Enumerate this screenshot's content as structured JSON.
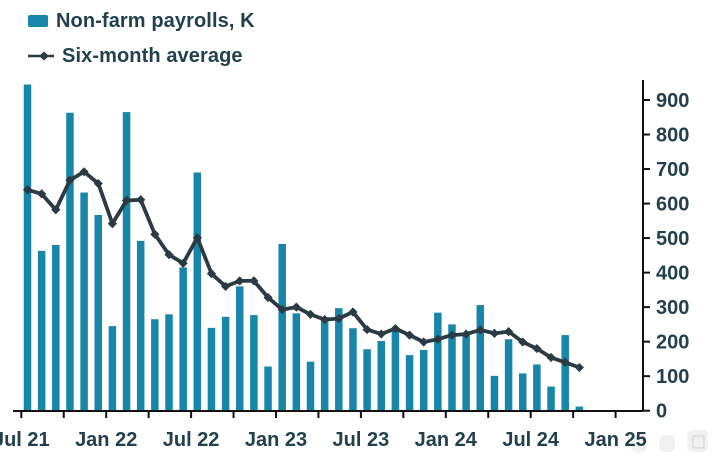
{
  "colors": {
    "bar": "#1886a8",
    "line": "#2b3a43",
    "text": "#23404e",
    "axis": "#111111"
  },
  "icons": {
    "legend_bar_swatch": "bar-swatch-icon",
    "legend_line_marker": "line-marker-icon",
    "watermark": "photo-icon"
  },
  "chart_data": {
    "type": "bar+line",
    "title": "",
    "xlabel": "",
    "ylabel": "",
    "grid": false,
    "legend_position": "top-left",
    "y_axis_side": "right",
    "ylim": [
      0,
      960
    ],
    "y_ticks": [
      0,
      100,
      200,
      300,
      400,
      500,
      600,
      700,
      800,
      900
    ],
    "x_tick_labels": [
      "Jul 21",
      "Jan 22",
      "Jul 22",
      "Jan 23",
      "Jul 23",
      "Jan 24",
      "Jul 24",
      "Jan 25"
    ],
    "minor_x_ticks_every_months": 3,
    "months": [
      "Jul 2021",
      "Aug 2021",
      "Sep 2021",
      "Oct 2021",
      "Nov 2021",
      "Dec 2021",
      "Jan 2022",
      "Feb 2022",
      "Mar 2022",
      "Apr 2022",
      "May 2022",
      "Jun 2022",
      "Jul 2022",
      "Aug 2022",
      "Sep 2022",
      "Oct 2022",
      "Nov 2022",
      "Dec 2022",
      "Jan 2023",
      "Feb 2023",
      "Mar 2023",
      "Apr 2023",
      "May 2023",
      "Jun 2023",
      "Jul 2023",
      "Aug 2023",
      "Sep 2023",
      "Oct 2023",
      "Nov 2023",
      "Dec 2023",
      "Jan 2024",
      "Feb 2024",
      "Mar 2024",
      "Apr 2024",
      "May 2024",
      "Jun 2024",
      "Jul 2024",
      "Aug 2024",
      "Sep 2024",
      "Oct 2024"
    ],
    "series": [
      {
        "name": "Non-farm payrolls, K",
        "type": "bar",
        "color": "#1886a8",
        "values": [
          945,
          463,
          480,
          863,
          632,
          567,
          245,
          865,
          492,
          265,
          279,
          415,
          690,
          240,
          272,
          360,
          277,
          128,
          483,
          282,
          142,
          271,
          297,
          239,
          178,
          202,
          239,
          161,
          176,
          284,
          250,
          224,
          306,
          101,
          207,
          108,
          134,
          70,
          219,
          12
        ]
      },
      {
        "name": "Six-month average",
        "type": "line",
        "color": "#2b3a43",
        "values": [
          640,
          628,
          582,
          668,
          692,
          658,
          542,
          609,
          611,
          511,
          452,
          427,
          501,
          397,
          360,
          376,
          376,
          328,
          293,
          300,
          279,
          264,
          267,
          286,
          235,
          222,
          238,
          219,
          199,
          207,
          219,
          222,
          234,
          224,
          229,
          199,
          180,
          154,
          140,
          125
        ]
      }
    ]
  }
}
